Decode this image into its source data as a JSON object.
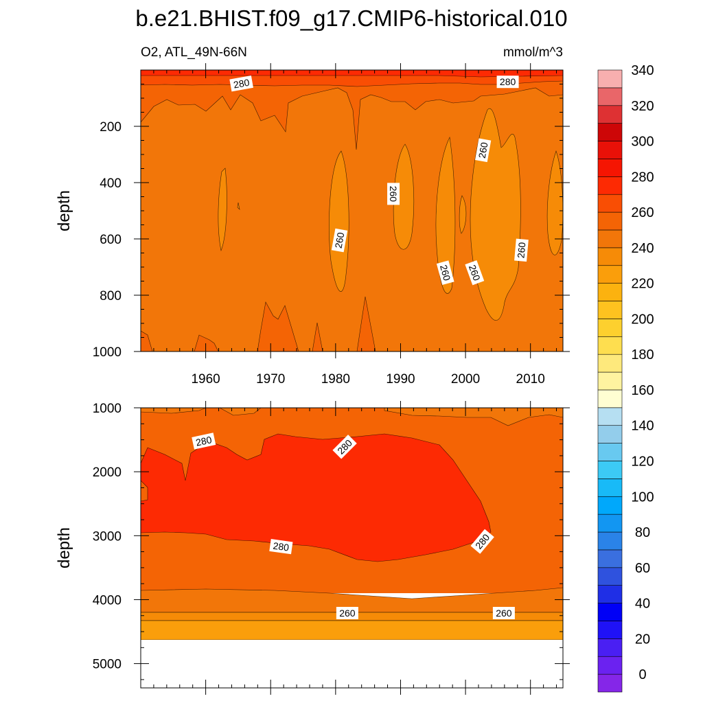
{
  "chart_data": {
    "title": "b.e21.BHIST.f09_g17.CMIP6-historical.010",
    "type": "contour",
    "panels": [
      {
        "left_label": "O2, ATL_49N-66N",
        "right_label": "mmol/m^3",
        "ylabel": "depth",
        "xlabel": "",
        "xlim": [
          1950,
          2015
        ],
        "ylim": [
          1000,
          0
        ],
        "x_ticks": [
          1960,
          1970,
          1980,
          1990,
          2000,
          2010
        ],
        "x_tick_labels": [
          "1960",
          "1970",
          "1980",
          "1990",
          "2000",
          "2010"
        ],
        "y_ticks": [
          200,
          400,
          600,
          800,
          1000
        ],
        "y_tick_labels": [
          "200",
          "400",
          "600",
          "800",
          "1000"
        ],
        "contour_labels": [
          {
            "text": "280",
            "x": 1965.5,
            "y": 48,
            "angle": -10
          },
          {
            "text": "280",
            "x": 2006.5,
            "y": 42,
            "angle": 0
          },
          {
            "text": "260",
            "x": 2002.7,
            "y": 285,
            "angle": -80
          },
          {
            "text": "260",
            "x": 1988.9,
            "y": 440,
            "angle": 90
          },
          {
            "text": "260",
            "x": 1980.6,
            "y": 605,
            "angle": -80
          },
          {
            "text": "260",
            "x": 1996.9,
            "y": 720,
            "angle": 75
          },
          {
            "text": "260",
            "x": 2001.4,
            "y": 720,
            "angle": 70
          },
          {
            "text": "260",
            "x": 2008.6,
            "y": 640,
            "angle": -85
          }
        ]
      },
      {
        "left_label": "",
        "right_label": "",
        "ylabel": "depth",
        "xlabel": "",
        "xlim": [
          1950,
          2015
        ],
        "ylim": [
          5380,
          1000
        ],
        "x_ticks": [
          1960,
          1970,
          1980,
          1990,
          2000,
          2010
        ],
        "x_tick_labels": [],
        "y_ticks": [
          1000,
          2000,
          3000,
          4000,
          5000
        ],
        "y_tick_labels": [
          "1000",
          "2000",
          "3000",
          "4000",
          "5000"
        ],
        "missing_below": 4620,
        "contour_labels": [
          {
            "text": "280",
            "x": 1959.7,
            "y": 1520,
            "angle": -12
          },
          {
            "text": "280",
            "x": 1981.4,
            "y": 1610,
            "angle": -45
          },
          {
            "text": "280",
            "x": 1971.6,
            "y": 3170,
            "angle": 8
          },
          {
            "text": "280",
            "x": 2002.6,
            "y": 3090,
            "angle": -50
          },
          {
            "text": "260",
            "x": 1981.8,
            "y": 4210,
            "angle": 0
          },
          {
            "text": "260",
            "x": 2005.9,
            "y": 4210,
            "angle": 0
          }
        ]
      }
    ],
    "colorbar": {
      "label_values": [
        0,
        20,
        40,
        60,
        80,
        100,
        120,
        140,
        160,
        180,
        200,
        220,
        240,
        260,
        280,
        300,
        320,
        340
      ],
      "labels": [
        "0",
        "20",
        "40",
        "60",
        "80",
        "100",
        "120",
        "140",
        "160",
        "180",
        "200",
        "220",
        "240",
        "260",
        "280",
        "300",
        "320",
        "340"
      ],
      "colors": [
        "#8526e8",
        "#6b22f0",
        "#4a1ff3",
        "#1f12f7",
        "#0000f6",
        "#1f2fe6",
        "#2f52de",
        "#3a6fdf",
        "#2a83e8",
        "#1296f2",
        "#00a8fb",
        "#18baf7",
        "#3ccaf5",
        "#68c9f0",
        "#93cdeb",
        "#b6dff2",
        "#fffed2",
        "#fff3a0",
        "#fee97c",
        "#fede4f",
        "#fdd02e",
        "#fec21f",
        "#fcb20f",
        "#fa9e0b",
        "#f68b07",
        "#f27609",
        "#f46405",
        "#f94e04",
        "#fd2a03",
        "#f51502",
        "#e91108",
        "#cd0607",
        "#de3133",
        "#e96669",
        "#f8afaf"
      ],
      "boundaries_start": -10,
      "boundaries_step": 10
    }
  }
}
